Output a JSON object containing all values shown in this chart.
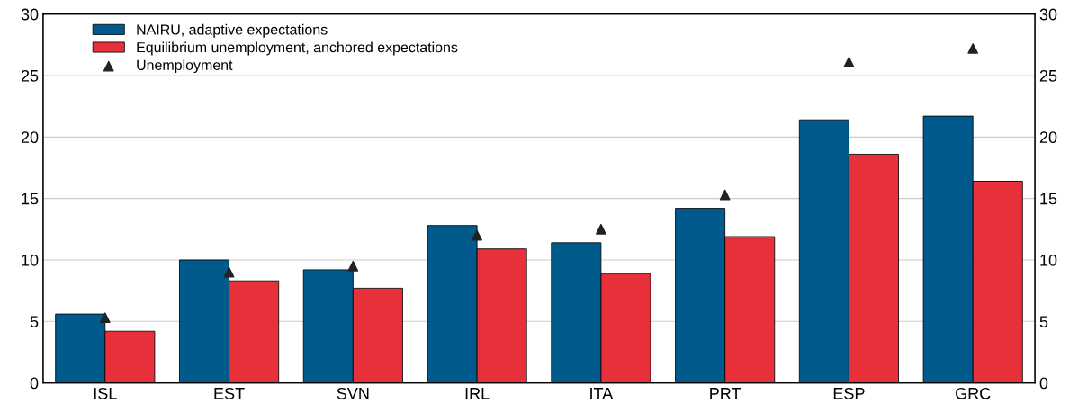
{
  "chart_data": {
    "type": "bar",
    "categories": [
      "ISL",
      "EST",
      "SVN",
      "IRL",
      "ITA",
      "PRT",
      "ESP",
      "GRC"
    ],
    "series": [
      {
        "name": "NAIRU, adaptive expectations",
        "color": "#005a8c",
        "values": [
          5.6,
          10.0,
          9.2,
          12.8,
          11.4,
          14.2,
          21.4,
          21.7
        ]
      },
      {
        "name": "Equilibrium unemployment, anchored expectations",
        "color": "#e8303a",
        "values": [
          4.2,
          8.3,
          7.7,
          10.9,
          8.9,
          11.9,
          18.6,
          16.4
        ]
      },
      {
        "name": "Unemployment",
        "type": "scatter",
        "color": "#222222",
        "marker": "triangle",
        "values": [
          5.3,
          9.0,
          9.5,
          12.0,
          12.5,
          15.3,
          26.1,
          27.2
        ]
      }
    ],
    "ylim": [
      0,
      30
    ],
    "yticks": [
      0,
      5,
      10,
      15,
      20,
      25,
      30
    ],
    "y2lim": [
      0,
      30
    ],
    "y2ticks": [
      0,
      5,
      10,
      15,
      20,
      25,
      30
    ],
    "grid": "y",
    "legend": "top left"
  }
}
